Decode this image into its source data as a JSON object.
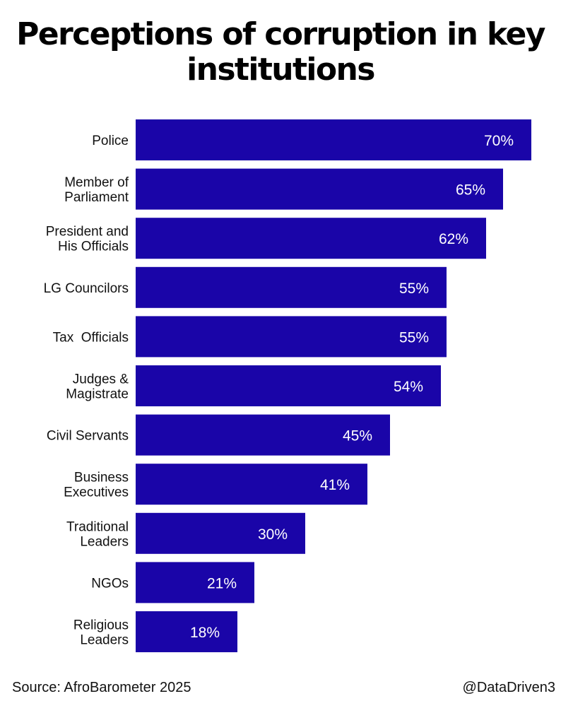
{
  "header": {
    "title_line1": "Perceptions of corruption in key",
    "title_line2": "institutions"
  },
  "footer": {
    "source": "Source: AfroBarometer 2025",
    "handle": "@DataDriven3"
  },
  "colors": {
    "bar": "#1a05a8",
    "background": "#ffffff",
    "text": "#111111",
    "value_text": "#ffffff"
  },
  "chart_data": {
    "type": "bar",
    "orientation": "horizontal",
    "title": "Perceptions of corruption in key institutions",
    "categories": [
      [
        "Police"
      ],
      [
        "Member of",
        "Parliament"
      ],
      [
        "President and",
        "His Officials"
      ],
      [
        "LG Councilors"
      ],
      [
        "Tax  Officials"
      ],
      [
        "Judges &",
        "Magistrate"
      ],
      [
        "Civil Servants"
      ],
      [
        "Business",
        "Executives"
      ],
      [
        "Traditional",
        "Leaders"
      ],
      [
        "NGOs"
      ],
      [
        "Religious",
        "Leaders"
      ]
    ],
    "values": [
      70,
      65,
      62,
      55,
      55,
      54,
      45,
      41,
      30,
      21,
      18
    ],
    "value_labels": [
      "70%",
      "65%",
      "62%",
      "55%",
      "55%",
      "54%",
      "45%",
      "41%",
      "30%",
      "21%",
      "18%"
    ],
    "unit": "%",
    "xlabel": "",
    "ylabel": "",
    "xlim": [
      0,
      70
    ],
    "grid": false,
    "legend": "none",
    "data_labels": "inside-end"
  }
}
